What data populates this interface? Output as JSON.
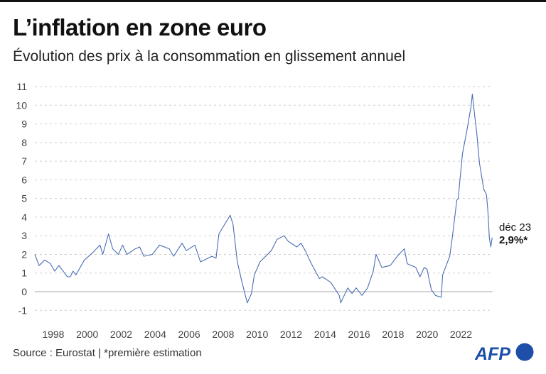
{
  "header": {
    "title": "L’inflation en zone euro",
    "subtitle": "Évolution des prix à la consommation en glissement annuel"
  },
  "footer": {
    "source": "Source : Eurostat | *première estimation",
    "logo": "AFP"
  },
  "colors": {
    "line": "#4a6db3",
    "grid": "#cfcfcf",
    "zero_line": "#a9a9a9",
    "logo": "#1d4fa8"
  },
  "chart_data": {
    "type": "line",
    "title": "L’inflation en zone euro",
    "subtitle": "Évolution des prix à la consommation en glissement annuel",
    "xlabel": "",
    "ylabel": "",
    "xlim": [
      "1997-01",
      "2023-12"
    ],
    "ylim": [
      -1,
      11
    ],
    "yticks": [
      "-1",
      "0",
      "1",
      "2",
      "3",
      "4",
      "5",
      "6",
      "7",
      "8",
      "9",
      "10",
      "11"
    ],
    "xticks": [
      "1998",
      "2000",
      "2002",
      "2004",
      "2006",
      "2008",
      "2010",
      "2012",
      "2014",
      "2016",
      "2018",
      "2020",
      "2022"
    ],
    "grid": "horizontal dashed",
    "annotation": {
      "date": "déc 23",
      "value": "2,9%*"
    },
    "points": [
      [
        "1997-01",
        2.0
      ],
      [
        "1997-04",
        1.4
      ],
      [
        "1997-08",
        1.7
      ],
      [
        "1997-12",
        1.5
      ],
      [
        "1998-03",
        1.1
      ],
      [
        "1998-06",
        1.4
      ],
      [
        "1998-12",
        0.8
      ],
      [
        "1999-02",
        0.8
      ],
      [
        "1999-04",
        1.1
      ],
      [
        "1999-06",
        0.9
      ],
      [
        "1999-12",
        1.7
      ],
      [
        "2000-06",
        2.1
      ],
      [
        "2000-11",
        2.5
      ],
      [
        "2001-01",
        2.0
      ],
      [
        "2001-05",
        3.1
      ],
      [
        "2001-08",
        2.3
      ],
      [
        "2001-12",
        2.0
      ],
      [
        "2002-03",
        2.5
      ],
      [
        "2002-06",
        2.0
      ],
      [
        "2002-12",
        2.3
      ],
      [
        "2003-03",
        2.4
      ],
      [
        "2003-06",
        1.9
      ],
      [
        "2003-12",
        2.0
      ],
      [
        "2004-05",
        2.5
      ],
      [
        "2004-12",
        2.3
      ],
      [
        "2005-03",
        1.9
      ],
      [
        "2005-09",
        2.6
      ],
      [
        "2005-12",
        2.2
      ],
      [
        "2006-06",
        2.5
      ],
      [
        "2006-10",
        1.6
      ],
      [
        "2007-06",
        1.9
      ],
      [
        "2007-09",
        1.8
      ],
      [
        "2007-11",
        3.1
      ],
      [
        "2008-03",
        3.6
      ],
      [
        "2008-07",
        4.1
      ],
      [
        "2008-09",
        3.6
      ],
      [
        "2008-12",
        1.6
      ],
      [
        "2009-03",
        0.6
      ],
      [
        "2009-07",
        -0.6
      ],
      [
        "2009-10",
        -0.1
      ],
      [
        "2009-12",
        0.9
      ],
      [
        "2010-04",
        1.6
      ],
      [
        "2010-12",
        2.2
      ],
      [
        "2011-04",
        2.8
      ],
      [
        "2011-09",
        3.0
      ],
      [
        "2011-12",
        2.7
      ],
      [
        "2012-06",
        2.4
      ],
      [
        "2012-09",
        2.6
      ],
      [
        "2012-12",
        2.2
      ],
      [
        "2013-03",
        1.7
      ],
      [
        "2013-05",
        1.4
      ],
      [
        "2013-10",
        0.7
      ],
      [
        "2013-12",
        0.8
      ],
      [
        "2014-06",
        0.5
      ],
      [
        "2014-12",
        -0.2
      ],
      [
        "2015-01",
        -0.6
      ],
      [
        "2015-06",
        0.2
      ],
      [
        "2015-09",
        -0.1
      ],
      [
        "2015-12",
        0.2
      ],
      [
        "2016-04",
        -0.2
      ],
      [
        "2016-08",
        0.2
      ],
      [
        "2016-12",
        1.1
      ],
      [
        "2017-02",
        2.0
      ],
      [
        "2017-06",
        1.3
      ],
      [
        "2017-12",
        1.4
      ],
      [
        "2018-06",
        2.0
      ],
      [
        "2018-10",
        2.3
      ],
      [
        "2018-12",
        1.5
      ],
      [
        "2019-06",
        1.3
      ],
      [
        "2019-09",
        0.8
      ],
      [
        "2019-12",
        1.3
      ],
      [
        "2020-02",
        1.2
      ],
      [
        "2020-05",
        0.1
      ],
      [
        "2020-08",
        -0.2
      ],
      [
        "2020-12",
        -0.3
      ],
      [
        "2021-01",
        0.9
      ],
      [
        "2021-06",
        1.9
      ],
      [
        "2021-08",
        3.0
      ],
      [
        "2021-11",
        4.9
      ],
      [
        "2021-12",
        5.0
      ],
      [
        "2022-03",
        7.4
      ],
      [
        "2022-06",
        8.6
      ],
      [
        "2022-09",
        9.9
      ],
      [
        "2022-10",
        10.6
      ],
      [
        "2022-12",
        9.2
      ],
      [
        "2023-01",
        8.6
      ],
      [
        "2023-03",
        6.9
      ],
      [
        "2023-06",
        5.5
      ],
      [
        "2023-08",
        5.2
      ],
      [
        "2023-09",
        4.3
      ],
      [
        "2023-10",
        2.9
      ],
      [
        "2023-11",
        2.4
      ],
      [
        "2023-12",
        2.9
      ]
    ]
  }
}
